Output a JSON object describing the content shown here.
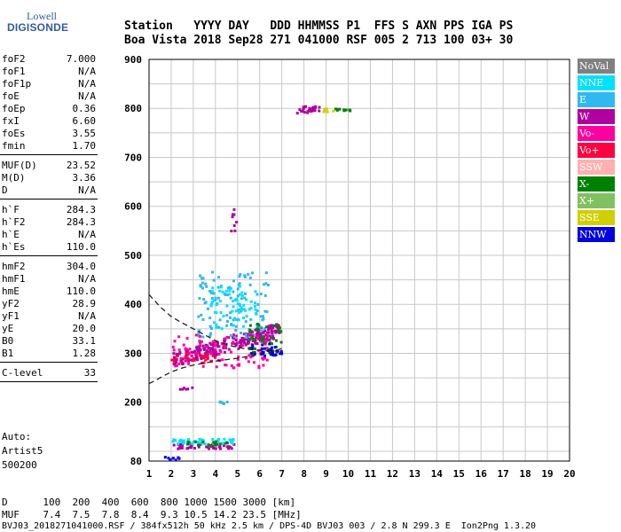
{
  "logo": {
    "line1": "Lowell",
    "line2": "DIGISONDE"
  },
  "header": {
    "labels": "Station   YYYY DAY   DDD HHMMSS P1  FFS S AXN PPS IGA PS",
    "values": "Boa Vista 2018 Sep28 271 041000 RSF 005 2 713 100 03+ 30"
  },
  "params": [
    {
      "k": "foF2",
      "v": "7.000"
    },
    {
      "k": "foF1",
      "v": "N/A"
    },
    {
      "k": "foF1p",
      "v": "N/A"
    },
    {
      "k": "foE",
      "v": "N/A"
    },
    {
      "k": "foEp",
      "v": "0.36"
    },
    {
      "k": "fxI",
      "v": "6.60"
    },
    {
      "k": "foEs",
      "v": "3.55"
    },
    {
      "k": "fmin",
      "v": "1.70"
    },
    {
      "k": "MUF(D)",
      "v": "23.52"
    },
    {
      "k": "M(D)",
      "v": "3.36"
    },
    {
      "k": "D",
      "v": "N/A"
    },
    {
      "k": "h`F",
      "v": "284.3"
    },
    {
      "k": "h`F2",
      "v": "284.3"
    },
    {
      "k": "h`E",
      "v": "N/A"
    },
    {
      "k": "h`Es",
      "v": "110.0"
    },
    {
      "k": "hmF2",
      "v": "304.0"
    },
    {
      "k": "hmF1",
      "v": "N/A"
    },
    {
      "k": "hmE",
      "v": "110.0"
    },
    {
      "k": "yF2",
      "v": "28.9"
    },
    {
      "k": "yF1",
      "v": "N/A"
    },
    {
      "k": "yE",
      "v": "20.0"
    },
    {
      "k": "B0",
      "v": "33.1"
    },
    {
      "k": "B1",
      "v": "1.28"
    },
    {
      "k": "C-level",
      "v": "33"
    }
  ],
  "auto": {
    "line1": "Auto:",
    "line2": "Artist5",
    "line3": "500200"
  },
  "legend": [
    {
      "label": "NoVal",
      "color": "#808080"
    },
    {
      "label": "NNE",
      "color": "#00e0ff"
    },
    {
      "label": "E",
      "color": "#30b8f0"
    },
    {
      "label": "W",
      "color": "#b000a0"
    },
    {
      "label": "Vo-",
      "color": "#ff00a0"
    },
    {
      "label": "Vo+",
      "color": "#ff0040"
    },
    {
      "label": "SSW",
      "color": "#ffb0b0"
    },
    {
      "label": "X-",
      "color": "#008000"
    },
    {
      "label": "X+",
      "color": "#80c060"
    },
    {
      "label": "SSE",
      "color": "#d0d000"
    },
    {
      "label": "NNW",
      "color": "#0000e0"
    }
  ],
  "chart_data": {
    "type": "scatter",
    "xlabel": "",
    "ylabel": "",
    "xlim": [
      1,
      20
    ],
    "ylim": [
      80,
      900
    ],
    "xticks": [
      1,
      2,
      3,
      4,
      5,
      6,
      7,
      8,
      9,
      10,
      11,
      12,
      13,
      14,
      15,
      16,
      17,
      18,
      19,
      20
    ],
    "yticks": [
      80,
      200,
      300,
      400,
      500,
      600,
      700,
      800,
      900
    ],
    "profile_curve": {
      "x": [
        1.0,
        1.5,
        2.0,
        2.5,
        3.0,
        3.5,
        4.0,
        4.5,
        5.0,
        5.5,
        6.0,
        6.5,
        7.0
      ],
      "y": [
        420,
        395,
        375,
        362,
        350,
        338,
        326,
        318,
        312,
        308,
        306,
        305,
        304
      ]
    },
    "trace_curve": {
      "x": [
        1.0,
        1.5,
        2.0,
        2.5,
        3.0,
        3.5,
        4.0,
        4.5,
        5.0,
        5.5,
        6.0,
        6.5,
        7.0
      ],
      "y": [
        238,
        250,
        262,
        270,
        276,
        280,
        284,
        287,
        290,
        294,
        298,
        302,
        310
      ]
    },
    "clusters": [
      {
        "name": "W",
        "x": [
          2.1,
          6.9
        ],
        "y": [
          270,
          360
        ],
        "n": 240
      },
      {
        "name": "E",
        "x": [
          3.2,
          6.4
        ],
        "y": [
          330,
          470
        ],
        "n": 110
      },
      {
        "name": "NNE",
        "x": [
          3.8,
          6.0
        ],
        "y": [
          350,
          440
        ],
        "n": 60
      },
      {
        "name": "Vo-",
        "x": [
          2.0,
          6.5
        ],
        "y": [
          270,
          340
        ],
        "n": 90
      },
      {
        "name": "X-",
        "x": [
          5.5,
          7.0
        ],
        "y": [
          300,
          360
        ],
        "n": 40
      },
      {
        "name": "NNW",
        "x": [
          5.5,
          7.0
        ],
        "y": [
          295,
          320
        ],
        "n": 30
      },
      {
        "name": "Vo+",
        "x": [
          2.0,
          4.0
        ],
        "y": [
          280,
          300
        ],
        "n": 25
      },
      {
        "name": "W",
        "x": [
          7.7,
          8.7
        ],
        "y": [
          790,
          805
        ],
        "n": 30
      },
      {
        "name": "X-",
        "x": [
          9.3,
          10.1
        ],
        "y": [
          795,
          800
        ],
        "n": 10
      },
      {
        "name": "SSE",
        "x": [
          8.8,
          9.4
        ],
        "y": [
          792,
          800
        ],
        "n": 6
      },
      {
        "name": "W",
        "x": [
          2.0,
          4.9
        ],
        "y": [
          105,
          115
        ],
        "n": 45
      },
      {
        "name": "NNE",
        "x": [
          2.0,
          4.9
        ],
        "y": [
          115,
          125
        ],
        "n": 45
      },
      {
        "name": "X-",
        "x": [
          2.5,
          4.6
        ],
        "y": [
          112,
          120
        ],
        "n": 15
      },
      {
        "name": "NNW",
        "x": [
          1.7,
          2.4
        ],
        "y": [
          82,
          88
        ],
        "n": 10
      },
      {
        "name": "W",
        "x": [
          4.7,
          5.0
        ],
        "y": [
          540,
          600
        ],
        "n": 8
      },
      {
        "name": "E",
        "x": [
          4.2,
          4.8
        ],
        "y": [
          195,
          205
        ],
        "n": 6
      },
      {
        "name": "W",
        "x": [
          2.4,
          3.0
        ],
        "y": [
          225,
          230
        ],
        "n": 6
      }
    ]
  },
  "footer": {
    "d_label": "D",
    "d_values": "100  200  400  600  800 1000 1500 3000 [km]",
    "muf_label": "MUF",
    "muf_values": "7.4  7.5  7.8  8.4  9.3 10.5 14.2 23.5 [MHz]",
    "file_line": "BVJ03_2018271041000.RSF / 384fx512h 50 kHz 2.5 km / DPS-4D BVJ03 003 / 2.8 N 299.3 E  Ion2Png 1.3.20"
  }
}
